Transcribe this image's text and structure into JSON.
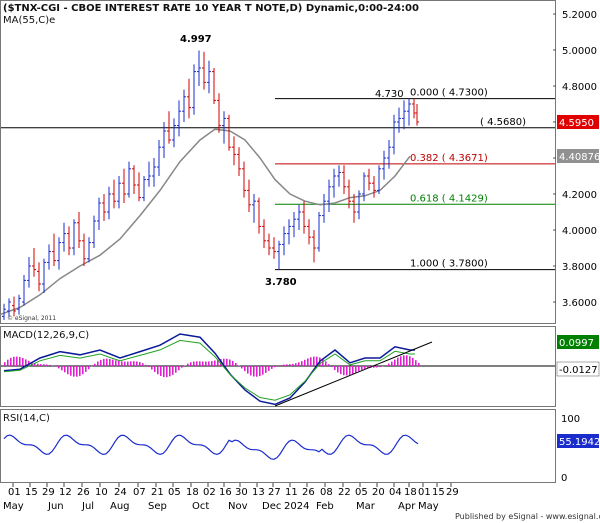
{
  "chart_data": {
    "title": "($TNX-CGI - CBOE INTEREST RATE 10 YEAR T NOTE,D) Dynamic,0:00-24:00",
    "price_panel": {
      "type": "ohlc",
      "ylim": [
        3.45,
        5.3
      ],
      "yticks": [
        "5.2000",
        "5.0000",
        "4.8000",
        "4.6000",
        "4.4000",
        "4.2000",
        "4.0000",
        "3.8000",
        "3.6000"
      ],
      "ma_label": "MA(55,C)e",
      "last_price": "4.5950",
      "ma_value": "4.40876",
      "ma_path": [
        [
          0,
          3.53
        ],
        [
          20,
          3.57
        ],
        [
          40,
          3.64
        ],
        [
          60,
          3.73
        ],
        [
          80,
          3.8
        ],
        [
          100,
          3.86
        ],
        [
          120,
          3.95
        ],
        [
          140,
          4.08
        ],
        [
          160,
          4.22
        ],
        [
          180,
          4.38
        ],
        [
          200,
          4.5
        ],
        [
          215,
          4.56
        ],
        [
          230,
          4.55
        ],
        [
          245,
          4.5
        ],
        [
          260,
          4.4
        ],
        [
          275,
          4.28
        ],
        [
          290,
          4.2
        ],
        [
          305,
          4.16
        ],
        [
          320,
          4.14
        ],
        [
          335,
          4.15
        ],
        [
          350,
          4.18
        ],
        [
          365,
          4.19
        ],
        [
          380,
          4.22
        ],
        [
          395,
          4.3
        ],
        [
          410,
          4.41
        ]
      ],
      "ohlc": [
        [
          4,
          3.52,
          3.59,
          3.5,
          3.56
        ],
        [
          9,
          3.55,
          3.62,
          3.52,
          3.6
        ],
        [
          14,
          3.58,
          3.63,
          3.52,
          3.55
        ],
        [
          19,
          3.56,
          3.64,
          3.53,
          3.62
        ],
        [
          24,
          3.6,
          3.75,
          3.58,
          3.72
        ],
        [
          29,
          3.72,
          3.85,
          3.68,
          3.8
        ],
        [
          34,
          3.8,
          3.9,
          3.74,
          3.78
        ],
        [
          39,
          3.77,
          3.82,
          3.66,
          3.7
        ],
        [
          44,
          3.7,
          3.84,
          3.65,
          3.82
        ],
        [
          49,
          3.82,
          3.92,
          3.78,
          3.88
        ],
        [
          54,
          3.88,
          3.98,
          3.8,
          3.83
        ],
        [
          59,
          3.83,
          3.96,
          3.78,
          3.93
        ],
        [
          64,
          3.93,
          4.04,
          3.88,
          3.98
        ],
        [
          69,
          3.98,
          4.02,
          3.86,
          3.9
        ],
        [
          74,
          3.9,
          4.06,
          3.86,
          4.04
        ],
        [
          79,
          4.04,
          4.1,
          3.9,
          3.94
        ],
        [
          84,
          3.94,
          3.98,
          3.8,
          3.84
        ],
        [
          89,
          3.84,
          3.96,
          3.82,
          3.93
        ],
        [
          94,
          3.93,
          4.08,
          3.9,
          4.05
        ],
        [
          99,
          4.05,
          4.18,
          4.0,
          4.15
        ],
        [
          104,
          4.15,
          4.2,
          4.05,
          4.1
        ],
        [
          109,
          4.1,
          4.24,
          4.06,
          4.2
        ],
        [
          114,
          4.2,
          4.28,
          4.12,
          4.16
        ],
        [
          119,
          4.16,
          4.3,
          4.12,
          4.26
        ],
        [
          124,
          4.26,
          4.34,
          4.15,
          4.2
        ],
        [
          129,
          4.2,
          4.38,
          4.18,
          4.34
        ],
        [
          134,
          4.34,
          4.36,
          4.2,
          4.25
        ],
        [
          139,
          4.25,
          4.32,
          4.16,
          4.18
        ],
        [
          144,
          4.18,
          4.3,
          4.16,
          4.28
        ],
        [
          149,
          4.28,
          4.38,
          4.24,
          4.3
        ],
        [
          154,
          4.3,
          4.4,
          4.24,
          4.35
        ],
        [
          159,
          4.35,
          4.5,
          4.3,
          4.46
        ],
        [
          164,
          4.46,
          4.6,
          4.4,
          4.55
        ],
        [
          169,
          4.55,
          4.66,
          4.48,
          4.5
        ],
        [
          174,
          4.5,
          4.62,
          4.46,
          4.58
        ],
        [
          179,
          4.58,
          4.72,
          4.52,
          4.66
        ],
        [
          184,
          4.66,
          4.78,
          4.6,
          4.74
        ],
        [
          189,
          4.74,
          4.84,
          4.62,
          4.68
        ],
        [
          194,
          4.68,
          4.92,
          4.64,
          4.88
        ],
        [
          199,
          4.88,
          4.997,
          4.8,
          4.9
        ],
        [
          204,
          4.9,
          4.99,
          4.78,
          4.82
        ],
        [
          209,
          4.82,
          4.94,
          4.76,
          4.88
        ],
        [
          214,
          4.88,
          4.9,
          4.7,
          4.72
        ],
        [
          219,
          4.72,
          4.76,
          4.54,
          4.58
        ],
        [
          224,
          4.58,
          4.66,
          4.48,
          4.62
        ],
        [
          229,
          4.62,
          4.64,
          4.44,
          4.46
        ],
        [
          234,
          4.46,
          4.52,
          4.36,
          4.42
        ],
        [
          239,
          4.42,
          4.46,
          4.3,
          4.34
        ],
        [
          244,
          4.34,
          4.38,
          4.18,
          4.22
        ],
        [
          249,
          4.22,
          4.28,
          4.1,
          4.14
        ],
        [
          254,
          4.14,
          4.2,
          4.04,
          4.16
        ],
        [
          259,
          4.16,
          4.18,
          3.98,
          4.02
        ],
        [
          264,
          4.02,
          4.06,
          3.9,
          3.94
        ],
        [
          269,
          3.94,
          3.98,
          3.86,
          3.9
        ],
        [
          274,
          3.9,
          3.96,
          3.84,
          3.88
        ],
        [
          279,
          3.88,
          3.94,
          3.78,
          3.92
        ],
        [
          284,
          3.92,
          4.02,
          3.86,
          3.98
        ],
        [
          289,
          3.98,
          4.06,
          3.92,
          4.02
        ],
        [
          294,
          4.02,
          4.1,
          3.96,
          4.06
        ],
        [
          299,
          4.06,
          4.14,
          4.0,
          4.1
        ],
        [
          304,
          4.1,
          4.16,
          3.98,
          4.02
        ],
        [
          309,
          4.02,
          4.06,
          3.92,
          3.96
        ],
        [
          314,
          3.96,
          4.0,
          3.82,
          3.9
        ],
        [
          319,
          3.9,
          4.1,
          3.88,
          4.08
        ],
        [
          324,
          4.08,
          4.2,
          4.04,
          4.16
        ],
        [
          329,
          4.16,
          4.28,
          4.1,
          4.24
        ],
        [
          334,
          4.24,
          4.34,
          4.18,
          4.3
        ],
        [
          339,
          4.3,
          4.36,
          4.24,
          4.32
        ],
        [
          344,
          4.32,
          4.36,
          4.2,
          4.24
        ],
        [
          349,
          4.24,
          4.28,
          4.12,
          4.16
        ],
        [
          354,
          4.16,
          4.2,
          4.04,
          4.1
        ],
        [
          359,
          4.1,
          4.22,
          4.06,
          4.2
        ],
        [
          364,
          4.2,
          4.32,
          4.16,
          4.3
        ],
        [
          369,
          4.3,
          4.34,
          4.22,
          4.26
        ],
        [
          374,
          4.26,
          4.3,
          4.18,
          4.22
        ],
        [
          379,
          4.22,
          4.36,
          4.2,
          4.34
        ],
        [
          384,
          4.34,
          4.44,
          4.28,
          4.4
        ],
        [
          389,
          4.4,
          4.5,
          4.34,
          4.46
        ],
        [
          394,
          4.46,
          4.64,
          4.42,
          4.6
        ],
        [
          399,
          4.6,
          4.68,
          4.54,
          4.62
        ],
        [
          404,
          4.62,
          4.72,
          4.56,
          4.66
        ],
        [
          409,
          4.66,
          4.73,
          4.58,
          4.7
        ],
        [
          414,
          4.7,
          4.73,
          4.62,
          4.65
        ],
        [
          417,
          4.65,
          4.7,
          4.58,
          4.6
        ]
      ],
      "levels": [
        {
          "value": 4.568,
          "label": "( 4.5680)",
          "full": true
        },
        {
          "value": 4.73,
          "label": "0.000 ( 4.7300)",
          "color": "#000000"
        },
        {
          "value": 4.3671,
          "label": "0.382 ( 4.3671)",
          "color": "#c00000"
        },
        {
          "value": 4.1429,
          "label": "0.618 ( 4.1429)",
          "color": "#008000"
        },
        {
          "value": 3.78,
          "label": "1.000 ( 3.7800)",
          "color": "#000000"
        }
      ],
      "annotations": [
        "4.997",
        "4.730",
        "3.780"
      ],
      "copyright": "© eSignal, 2011"
    },
    "macd_panel": {
      "label": "MACD(12,26,9,C)",
      "value_1": "0.0997",
      "value_2": "-0.0127",
      "ylim": [
        -0.3,
        0.25
      ]
    },
    "rsi_panel": {
      "label": "RSI(14,C)",
      "value": "55.1942",
      "ticks": [
        "100",
        "50",
        "0"
      ]
    },
    "x_axis": {
      "day_labels": [
        "01",
        "15",
        "29",
        "12",
        "26",
        "10",
        "24",
        "07",
        "21",
        "05",
        "18",
        "02",
        "16",
        "30",
        "13",
        "27",
        "11",
        "26",
        "08",
        "22",
        "05",
        "20",
        "04",
        "18",
        "01",
        "15",
        "29"
      ],
      "month_labels": [
        "May",
        "Jun",
        "Jul",
        "Aug",
        "Sep",
        "Oct",
        "Nov",
        "Dec",
        "2024",
        "Feb",
        "Mar",
        "Apr",
        "May"
      ]
    },
    "footer": "Published by eSignal - www.esignal.com",
    "colors": {
      "price_box": "#e00000",
      "ma_box": "#909090",
      "macd_box": "#008000",
      "signal_box": "#ffffff",
      "rsi_box": "#1a2ccc"
    }
  }
}
